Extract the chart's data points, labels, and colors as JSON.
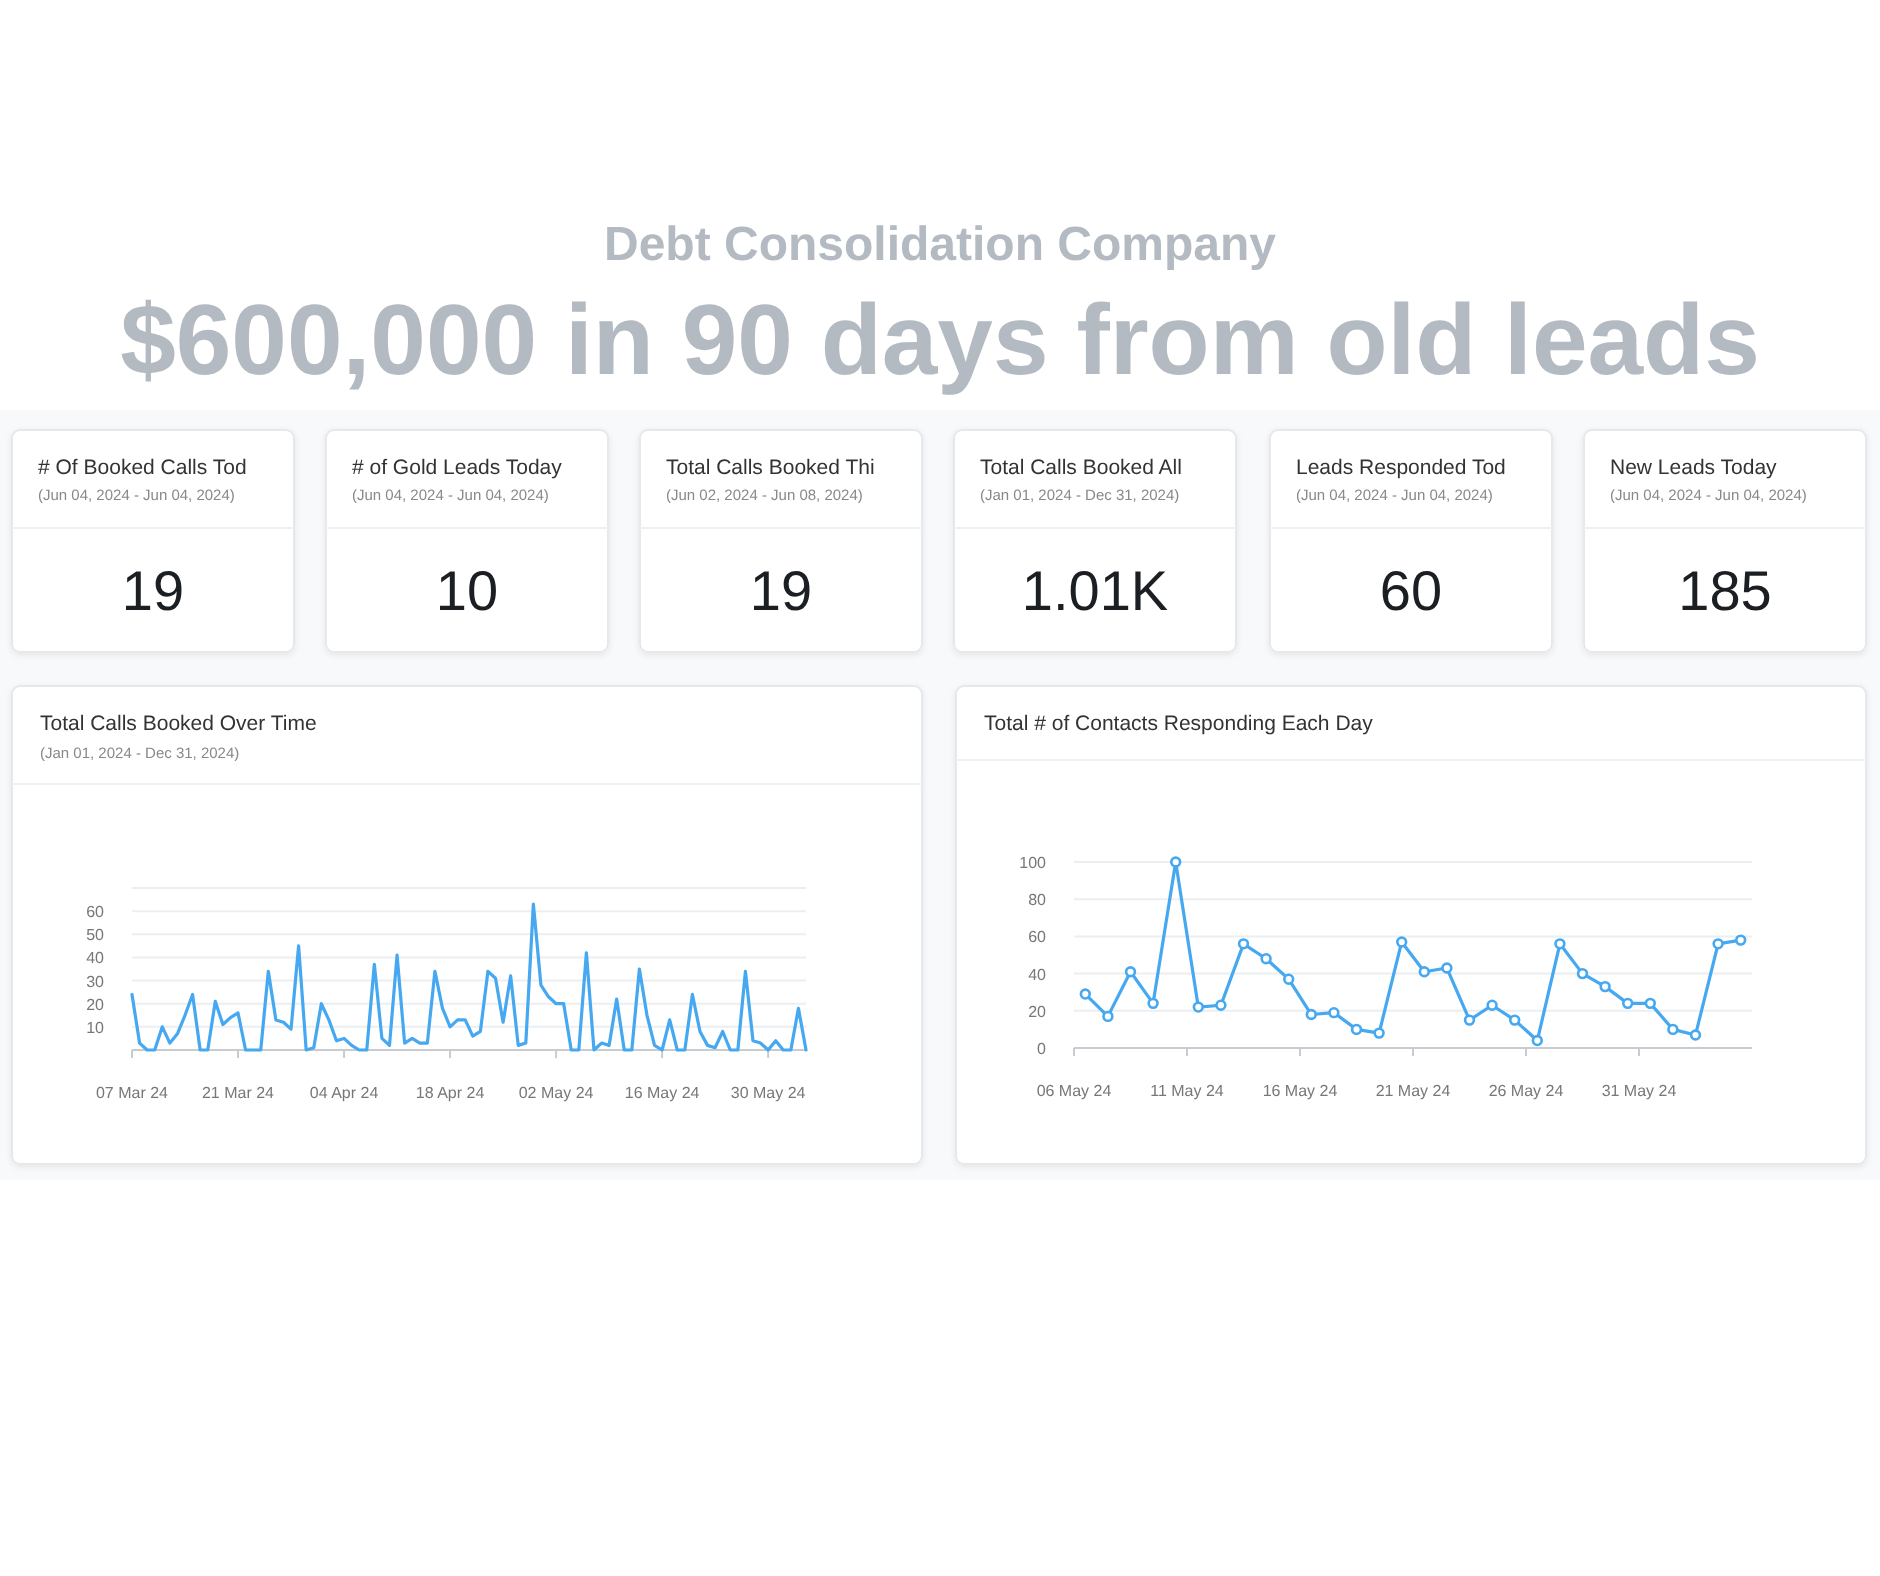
{
  "chart_data": [
    {
      "type": "other",
      "title": "Debt Consolidation Company",
      "subtitle": "$600,000 in 90 days from old leads"
    },
    {
      "type": "other",
      "title": "# Of Booked Calls Tod",
      "subtitle": "(Jun 04, 2024 - Jun 04, 2024)",
      "annotations": [
        "19"
      ]
    },
    {
      "type": "other",
      "title": "# of Gold Leads Today",
      "subtitle": "(Jun 04, 2024 - Jun 04, 2024)",
      "annotations": [
        "10"
      ]
    },
    {
      "type": "other",
      "title": "Total Calls Booked Thi",
      "subtitle": "(Jun 02, 2024 - Jun 08, 2024)",
      "annotations": [
        "19"
      ]
    },
    {
      "type": "other",
      "title": "Total Calls Booked All",
      "subtitle": "(Jan 01, 2024 - Dec 31, 2024)",
      "annotations": [
        "1.01K"
      ]
    },
    {
      "type": "other",
      "title": "Leads Responded Tod",
      "subtitle": "(Jun 04, 2024 - Jun 04, 2024)",
      "annotations": [
        "60"
      ]
    },
    {
      "type": "other",
      "title": "New Leads Today",
      "subtitle": "(Jun 04, 2024 - Jun 04, 2024)",
      "annotations": [
        "185"
      ]
    },
    {
      "type": "line",
      "title": "Total Calls Booked Over Time",
      "subtitle": "(Jan 01, 2024 - Dec 31, 2024)",
      "grid": "y",
      "marker": "none",
      "line_style": "solid",
      "x": [
        "2024-03-07",
        "2024-03-08",
        "2024-03-09",
        "2024-03-10",
        "2024-03-11",
        "2024-03-12",
        "2024-03-13",
        "2024-03-14",
        "2024-03-15",
        "2024-03-16",
        "2024-03-17",
        "2024-03-18",
        "2024-03-19",
        "2024-03-20",
        "2024-03-21",
        "2024-03-22",
        "2024-03-23",
        "2024-03-24",
        "2024-03-25",
        "2024-03-26",
        "2024-03-27",
        "2024-03-28",
        "2024-03-29",
        "2024-03-30",
        "2024-03-31",
        "2024-04-01",
        "2024-04-02",
        "2024-04-03",
        "2024-04-04",
        "2024-04-05",
        "2024-04-06",
        "2024-04-07",
        "2024-04-08",
        "2024-04-09",
        "2024-04-10",
        "2024-04-11",
        "2024-04-12",
        "2024-04-13",
        "2024-04-14",
        "2024-04-15",
        "2024-04-16",
        "2024-04-17",
        "2024-04-18",
        "2024-04-19",
        "2024-04-20",
        "2024-04-21",
        "2024-04-22",
        "2024-04-23",
        "2024-04-24",
        "2024-04-25",
        "2024-04-26",
        "2024-04-27",
        "2024-04-28",
        "2024-04-29",
        "2024-04-30",
        "2024-05-01",
        "2024-05-02",
        "2024-05-03",
        "2024-05-04",
        "2024-05-05",
        "2024-05-06",
        "2024-05-07",
        "2024-05-08",
        "2024-05-09",
        "2024-05-10",
        "2024-05-11",
        "2024-05-12",
        "2024-05-13",
        "2024-05-14",
        "2024-05-15",
        "2024-05-16",
        "2024-05-17",
        "2024-05-18",
        "2024-05-19",
        "2024-05-20",
        "2024-05-21",
        "2024-05-22",
        "2024-05-23",
        "2024-05-24",
        "2024-05-25",
        "2024-05-26",
        "2024-05-27",
        "2024-05-28",
        "2024-05-29",
        "2024-05-30",
        "2024-05-31",
        "2024-06-01",
        "2024-06-02",
        "2024-06-03",
        "2024-06-04"
      ],
      "series": [
        {
          "color": "#45a8f0",
          "values": [
            24,
            3,
            0,
            0,
            10,
            3,
            7,
            15,
            24,
            0,
            0,
            21,
            11,
            14,
            16,
            0,
            0,
            0,
            34,
            13,
            12,
            9,
            45,
            0,
            1,
            20,
            13,
            4,
            5,
            2,
            0,
            0,
            37,
            5,
            2,
            41,
            3,
            5,
            3,
            3,
            34,
            18,
            10,
            13,
            13,
            6,
            8,
            34,
            31,
            12,
            32,
            2,
            3,
            63,
            28,
            23,
            20,
            20,
            0,
            0,
            42,
            0,
            3,
            2,
            22,
            0,
            0,
            35,
            15,
            2,
            0,
            13,
            0,
            0,
            24,
            8,
            2,
            1,
            8,
            0,
            0,
            34,
            4,
            3,
            0,
            4,
            0,
            0,
            18,
            0
          ]
        }
      ],
      "xlim": [
        "2024-03-07",
        "2024-06-04"
      ],
      "xticks": [
        {
          "value": "2024-03-07",
          "label": "07 Mar 24"
        },
        {
          "value": "2024-03-21",
          "label": "21 Mar 24"
        },
        {
          "value": "2024-04-04",
          "label": "04 Apr 24"
        },
        {
          "value": "2024-04-18",
          "label": "18 Apr 24"
        },
        {
          "value": "2024-05-02",
          "label": "02 May 24"
        },
        {
          "value": "2024-05-16",
          "label": "16 May 24"
        },
        {
          "value": "2024-05-30",
          "label": "30 May 24"
        }
      ],
      "ylim": [
        0,
        70
      ],
      "yticks": [
        {
          "value": 0,
          "label": null
        },
        10,
        20,
        30,
        40,
        50,
        60,
        {
          "value": 70,
          "label": null
        }
      ]
    },
    {
      "type": "line",
      "title": "Total # of Contacts Responding Each Day",
      "grid": "y",
      "marker": "circle",
      "line_style": "solid",
      "x": [
        "2024-05-06T12:00",
        "2024-05-07T12:00",
        "2024-05-08T12:00",
        "2024-05-09T12:00",
        "2024-05-10T12:00",
        "2024-05-11T12:00",
        "2024-05-12T12:00",
        "2024-05-13T12:00",
        "2024-05-14T12:00",
        "2024-05-15T12:00",
        "2024-05-16T12:00",
        "2024-05-17T12:00",
        "2024-05-18T12:00",
        "2024-05-19T12:00",
        "2024-05-20T12:00",
        "2024-05-21T12:00",
        "2024-05-22T12:00",
        "2024-05-23T12:00",
        "2024-05-24T12:00",
        "2024-05-25T12:00",
        "2024-05-26T12:00",
        "2024-05-27T12:00",
        "2024-05-28T12:00",
        "2024-05-29T12:00",
        "2024-05-30T12:00",
        "2024-05-31T12:00",
        "2024-06-01T12:00",
        "2024-06-02T12:00",
        "2024-06-03T12:00",
        "2024-06-04T12:00"
      ],
      "series": [
        {
          "color": "#45a8f0",
          "values": [
            29,
            17,
            41,
            24,
            100,
            22,
            23,
            56,
            48,
            37,
            18,
            19,
            10,
            8,
            57,
            41,
            43,
            15,
            23,
            15,
            4,
            56,
            40,
            33,
            24,
            24,
            10,
            7,
            56,
            58
          ]
        }
      ],
      "xlim": [
        "2024-05-06",
        "2024-06-05"
      ],
      "xticks": [
        {
          "value": "2024-05-06",
          "label": "06 May 24"
        },
        {
          "value": "2024-05-11",
          "label": "11 May 24"
        },
        {
          "value": "2024-05-16",
          "label": "16 May 24"
        },
        {
          "value": "2024-05-21",
          "label": "21 May 24"
        },
        {
          "value": "2024-05-26",
          "label": "26 May 24"
        },
        {
          "value": "2024-05-31",
          "label": "31 May 24"
        }
      ],
      "ylim": [
        0,
        100
      ],
      "yticks": [
        0,
        20,
        40,
        60,
        80,
        100
      ]
    }
  ]
}
